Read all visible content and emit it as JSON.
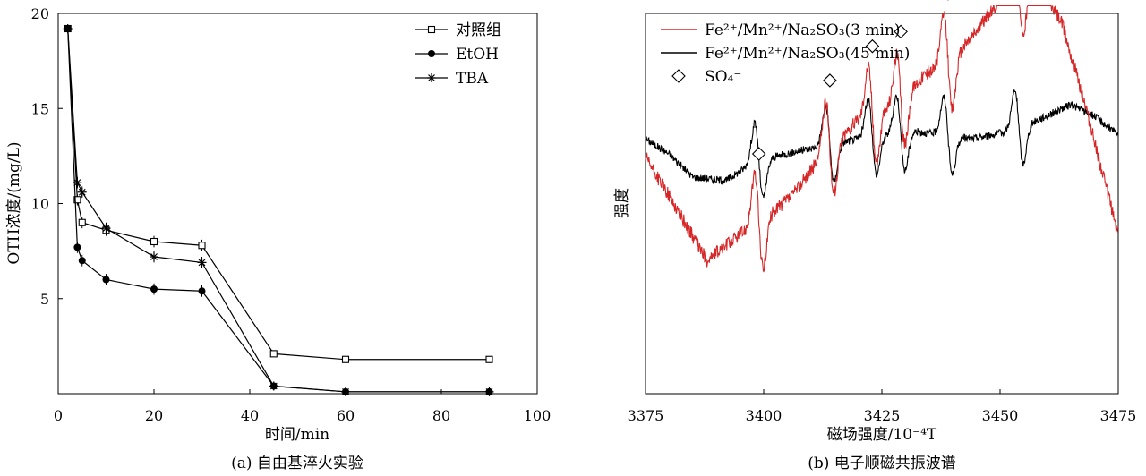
{
  "chart_data": [
    {
      "type": "line",
      "caption": "(a) 自由基淬火实验",
      "xlabel": "时间/min",
      "ylabel": "OTH浓度/(mg/L)",
      "xlim": [
        0,
        100
      ],
      "ylim": [
        0,
        20
      ],
      "xticks": [
        0,
        20,
        40,
        60,
        80,
        100
      ],
      "yticks": [
        5,
        10,
        15,
        20
      ],
      "legend_position": "top-right",
      "series": [
        {
          "name": "对照组",
          "marker": "square-open",
          "x": [
            2,
            4,
            5,
            10,
            20,
            30,
            45,
            60,
            90
          ],
          "y": [
            19.2,
            10.2,
            9.0,
            8.6,
            8.0,
            7.8,
            2.1,
            1.8,
            1.8
          ]
        },
        {
          "name": "EtOH",
          "marker": "circle-filled",
          "x": [
            2,
            4,
            5,
            10,
            20,
            30,
            45,
            60,
            90
          ],
          "y": [
            19.2,
            7.7,
            7.0,
            6.0,
            5.5,
            5.4,
            0.4,
            0.1,
            0.1
          ]
        },
        {
          "name": "TBA",
          "marker": "asterisk",
          "x": [
            2,
            4,
            5,
            10,
            20,
            30,
            45,
            60,
            90
          ],
          "y": [
            19.2,
            11.1,
            10.6,
            8.7,
            7.2,
            6.9,
            0.4,
            0.1,
            0.1
          ]
        }
      ]
    },
    {
      "type": "line",
      "caption": "(b) 电子顺磁共振波谱",
      "xlabel": "磁场强度/10⁻⁴T",
      "ylabel": "强度",
      "xlim": [
        3375,
        3475
      ],
      "xticks": [
        3375,
        3400,
        3425,
        3450,
        3475
      ],
      "legend_position": "top-left",
      "spectrum_peaks_G": [
        3399,
        3414,
        3423,
        3429,
        3439,
        3454
      ],
      "series": [
        {
          "name": "Fe²⁺/Mn²⁺/Na₂SO₃(3 min)",
          "color": "#d62728",
          "baseline": [
            [
              3375,
              0.62
            ],
            [
              3380,
              0.52
            ],
            [
              3388,
              0.35
            ],
            [
              3395,
              0.42
            ],
            [
              3400,
              0.46
            ],
            [
              3406,
              0.52
            ],
            [
              3412,
              0.62
            ],
            [
              3420,
              0.72
            ],
            [
              3428,
              0.76
            ],
            [
              3434,
              0.84
            ],
            [
              3440,
              0.88
            ],
            [
              3446,
              0.97
            ],
            [
              3452,
              1.07
            ],
            [
              3458,
              1.08
            ],
            [
              3463,
              0.98
            ],
            [
              3468,
              0.76
            ],
            [
              3475,
              0.42
            ]
          ]
        },
        {
          "name": "Fe²⁺/Mn²⁺/Na₂SO₃(45 min)",
          "color": "#000000",
          "baseline": [
            [
              3375,
              0.67
            ],
            [
              3380,
              0.63
            ],
            [
              3385,
              0.57
            ],
            [
              3392,
              0.56
            ],
            [
              3398,
              0.61
            ],
            [
              3408,
              0.64
            ],
            [
              3420,
              0.67
            ],
            [
              3432,
              0.69
            ],
            [
              3444,
              0.67
            ],
            [
              3452,
              0.69
            ],
            [
              3458,
              0.72
            ],
            [
              3465,
              0.76
            ],
            [
              3470,
              0.73
            ],
            [
              3475,
              0.68
            ]
          ]
        },
        {
          "name": "SO₄⁻",
          "marker": "diamond-open"
        }
      ]
    }
  ]
}
